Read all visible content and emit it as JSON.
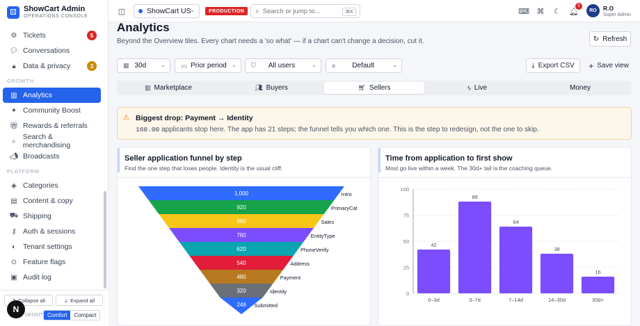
{
  "brand": {
    "title": "ShowCart Admin",
    "subtitle": "OPERATIONS CONSOLE"
  },
  "sidebar": {
    "items": [
      {
        "label": "Tickets",
        "icon": "settings-icon",
        "badge": "5",
        "badge_color": "#dc2626"
      },
      {
        "label": "Conversations",
        "icon": "chat-icon"
      },
      {
        "label": "Data & privacy",
        "icon": "lock-icon",
        "badge": "3",
        "badge_color": "#ca8a04"
      },
      {
        "section": "GROWTH"
      },
      {
        "label": "Analytics",
        "icon": "bar-chart-icon",
        "active": true
      },
      {
        "label": "Community Boost",
        "icon": "sparkle-icon"
      },
      {
        "label": "Rewards & referrals",
        "icon": "gift-icon"
      },
      {
        "label": "Search & merchandising",
        "icon": "search-icon"
      },
      {
        "label": "Broadcasts",
        "icon": "megaphone-icon"
      },
      {
        "section": "PLATFORM"
      },
      {
        "label": "Categories",
        "icon": "layers-icon"
      },
      {
        "label": "Content & copy",
        "icon": "document-icon"
      },
      {
        "label": "Shipping",
        "icon": "truck-icon"
      },
      {
        "label": "Auth & sessions",
        "icon": "key-icon"
      },
      {
        "label": "Tenant settings",
        "icon": "palette-icon"
      },
      {
        "label": "Feature flags",
        "icon": "toggle-icon"
      },
      {
        "label": "Audit log",
        "icon": "clipboard-icon"
      }
    ],
    "footer": {
      "collapse_label": "Collapse all",
      "expand_label": "Expand all",
      "density_label": "DENSITY",
      "density_options": [
        "Comfort",
        "Compact"
      ],
      "density_selected": "Comfort"
    }
  },
  "topbar": {
    "store": "ShowCart US",
    "env_badge": "PRODUCTION",
    "search_placeholder": "Search or jump to...",
    "search_shortcut": "⌘K",
    "notification_count": "5",
    "user": {
      "initials": "RO",
      "name": "R.O",
      "role": "Super Admin"
    }
  },
  "page": {
    "title": "Analytics",
    "subtitle": "Beyond the Overview tiles. Every chart needs a 'so what' — if a chart can't change a decision, cut it.",
    "refresh_label": "Refresh",
    "filters": {
      "range": "30d",
      "compare_prefix": "vs",
      "compare": "Prior period",
      "audience": "All users",
      "view": "Default"
    },
    "export_label": "Export CSV",
    "save_view_label": "Save view",
    "tabs": [
      {
        "label": "Marketplace",
        "icon": "bar-chart-icon"
      },
      {
        "label": "Buyers",
        "icon": "users-icon"
      },
      {
        "label": "Sellers",
        "icon": "cart-icon",
        "active": true
      },
      {
        "label": "Live",
        "icon": "bolt-icon"
      },
      {
        "label": "Money",
        "icon": ""
      }
    ],
    "alert": {
      "title": "Biggest drop: Payment → Identity",
      "value": "160.00",
      "body": " applicants stop here. The app has 21 steps; the funnel tells you which one. This is the step to redesign, not the one to skip."
    }
  },
  "funnel_card": {
    "title": "Seller application funnel by step",
    "subtitle": "Find the one step that loses people. Identity is the usual cliff."
  },
  "bars_card": {
    "title": "Time from application to first show",
    "subtitle": "Most go live within a week. The 30d+ tail is the coaching queue."
  },
  "chart_data": [
    {
      "type": "funnel",
      "categories": [
        "Intro",
        "PrimaryCat",
        "Sales",
        "EntityType",
        "PhoneVerify",
        "Address",
        "Payment",
        "Identity",
        "Submitted"
      ],
      "values": [
        1000,
        920,
        880,
        760,
        620,
        540,
        480,
        320,
        248
      ],
      "labels": [
        "1,000",
        "920",
        "880",
        "760",
        "620",
        "540",
        "480",
        "320",
        "248"
      ],
      "colors": [
        "#2f6bff",
        "#16a34a",
        "#f5c518",
        "#7c4dff",
        "#0aa5b0",
        "#e11d3a",
        "#b7791f",
        "#6b6f78",
        "#2f6bff"
      ]
    },
    {
      "type": "bar",
      "categories": [
        "0–3d",
        "3–7d",
        "7–14d",
        "14–30d",
        "30d+"
      ],
      "values": [
        42,
        88,
        64,
        38,
        16
      ],
      "ylim": [
        0,
        100
      ],
      "yticks": [
        0,
        25,
        50,
        75,
        100
      ],
      "color": "#7c4dff",
      "grid": true
    }
  ]
}
